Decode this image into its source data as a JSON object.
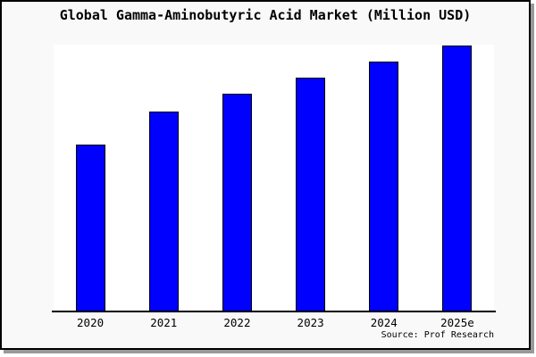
{
  "page": {
    "title": "Global Gamma-Aminobutyric Acid Market (Million USD)",
    "source_note": "Source: Prof Research"
  },
  "chart_data": {
    "type": "bar",
    "title": "Global Gamma-Aminobutyric Acid Market (Million USD)",
    "categories": [
      "2020",
      "2021",
      "2022",
      "2023",
      "2024",
      "2025e"
    ],
    "values": [
      186,
      223,
      243,
      261,
      279,
      297
    ],
    "values_unit": "relative bar heights; chart displays no y-axis or value labels",
    "xlabel": "",
    "ylabel": "",
    "ylim": [
      0,
      298
    ],
    "grid": false,
    "legend": false,
    "y_axis_visible": false,
    "source": "Source: Prof Research"
  },
  "colors": {
    "bar_fill": "#0000ff",
    "bar_border": "#000000",
    "axis": "#000000",
    "frame_border": "#000000",
    "frame_shadow": "#999999",
    "page_bg": "#f9f9f9",
    "plot_bg": "#ffffff",
    "text": "#000000"
  }
}
